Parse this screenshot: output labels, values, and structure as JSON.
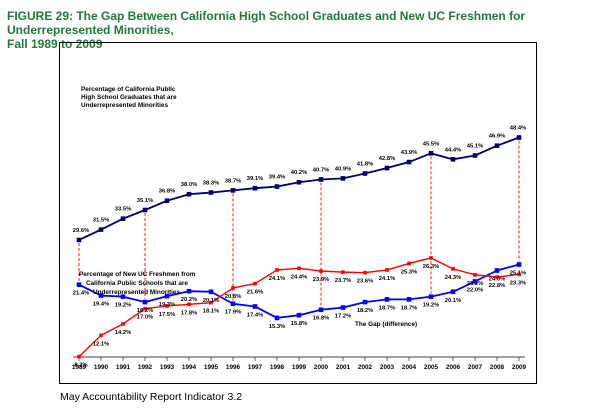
{
  "page": {
    "title_line1": "FIGURE 29:  The Gap Between California High School Graduates and New UC Freshmen for Underrepresented Minorities,",
    "title_line2": "Fall 1989 to 2009",
    "footer": "May Accountability Report Indicator 3.2"
  },
  "chart_data": {
    "type": "line",
    "title": "The Gap Between California High School Graduates and New UC Freshmen for Underrepresented Minorities, Fall 1989 to 2009",
    "x": [
      1989,
      1990,
      1991,
      1992,
      1993,
      1994,
      1995,
      1996,
      1997,
      1998,
      1999,
      2000,
      2001,
      2002,
      2003,
      2004,
      2005,
      2006,
      2007,
      2008,
      2009
    ],
    "ylim": [
      0,
      52
    ],
    "series": [
      {
        "name": "Percentage of California Public High School Graduates that are Underrepresented Minorities",
        "color": "#000066",
        "values": [
          29.6,
          31.5,
          33.5,
          35.1,
          36.8,
          38.0,
          38.3,
          38.7,
          39.1,
          39.4,
          40.2,
          40.7,
          40.9,
          41.8,
          42.8,
          43.9,
          45.5,
          44.4,
          45.1,
          46.9,
          48.4
        ],
        "labels": [
          "29.6%",
          "31.5%",
          "33.5%",
          "35.1%",
          "36.8%",
          "38.0%",
          "38.3%",
          "38.7%",
          "39.1%",
          "39.4%",
          "40.2%",
          "40.7%",
          "40.9%",
          "41.8%",
          "42.8%",
          "43.9%",
          "45.5%",
          "44.4%",
          "45.1%",
          "46.9%",
          "48.4%"
        ]
      },
      {
        "name": "Percentage of New UC Freshmen from California Public Schools that are Underrepresented Minorities",
        "color": "#0000ff",
        "values": [
          21.4,
          19.4,
          19.2,
          18.2,
          19.3,
          20.2,
          20.1,
          17.9,
          17.4,
          15.3,
          15.8,
          16.8,
          17.2,
          18.2,
          18.7,
          18.7,
          19.2,
          20.1,
          22.0,
          24.0,
          25.1
        ],
        "labels": [
          "21.4%",
          "19.4%",
          "19.2%",
          "18.2%",
          "19.3%",
          "20.2%",
          "20.1%",
          "17.9%",
          "17.4%",
          "15.3%",
          "15.8%",
          "16.8%",
          "17.2%",
          "18.2%",
          "18.7%",
          "18.7%",
          "19.2%",
          "20.1%",
          "22.0%",
          "24.0%",
          "25.1%"
        ]
      },
      {
        "name": "The Gap (difference)",
        "color": "#ff0000",
        "values": [
          8.2,
          12.1,
          14.2,
          17.0,
          17.5,
          17.8,
          18.1,
          20.8,
          21.6,
          24.1,
          24.4,
          23.9,
          23.7,
          23.6,
          24.1,
          25.3,
          26.3,
          24.3,
          23.2,
          22.8,
          23.3
        ],
        "labels": [
          "8.2%",
          "12.1%",
          "14.2%",
          "17.0%",
          "17.5%",
          "17.8%",
          "18.1%",
          "20.8%",
          "21.6%",
          "24.1%",
          "24.4%",
          "23.9%",
          "23.7%",
          "23.6%",
          "24.1%",
          "25.3%",
          "26.3%",
          "24.3%",
          "23.2%",
          "22.8%",
          "23.3%"
        ]
      }
    ],
    "gap_marker_years": [
      1989,
      1992,
      1996,
      2000,
      2005,
      2009
    ],
    "annotations": {
      "hs_line1": "Percentage of California Public",
      "hs_line2": "High School Graduates that are",
      "hs_line3": "Underrepresented Minorities",
      "uc_line1": "Percentage of New UC Freshmen from",
      "uc_line2": "California Public Schools that are",
      "uc_line3": "Underrepresented Minorities",
      "gap": "The Gap (difference)"
    }
  }
}
